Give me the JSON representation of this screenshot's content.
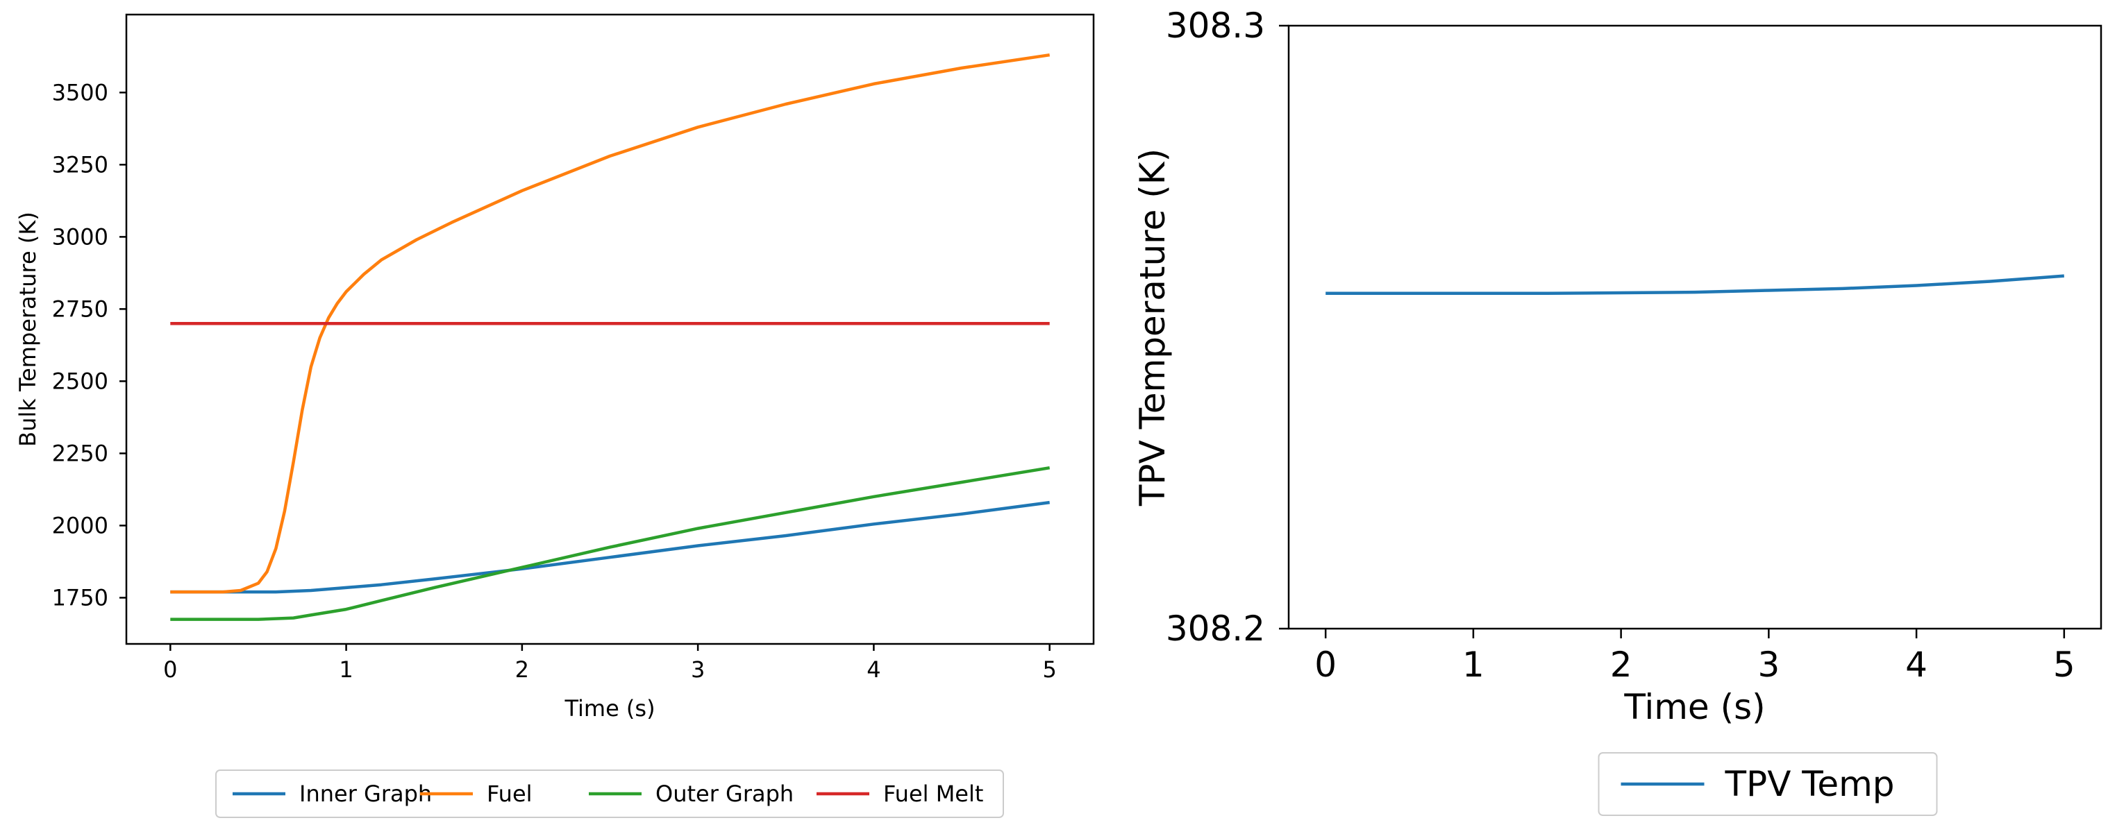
{
  "chart_data": [
    {
      "type": "line",
      "title": "",
      "xlabel": "Time (s)",
      "ylabel": "Bulk Temperature (K)",
      "xlim": [
        -0.25,
        5.25
      ],
      "ylim": [
        1590,
        3770
      ],
      "xticks": [
        0,
        1,
        2,
        3,
        4,
        5
      ],
      "xtick_labels": [
        "0",
        "1",
        "2",
        "3",
        "4",
        "5"
      ],
      "yticks": [
        1750,
        2000,
        2250,
        2500,
        2750,
        3000,
        3250,
        3500
      ],
      "ytick_labels": [
        "1750",
        "2000",
        "2250",
        "2500",
        "2750",
        "3000",
        "3250",
        "3500"
      ],
      "grid": false,
      "legend_position": "bottom-center",
      "series": [
        {
          "name": "Inner Graph",
          "color": "#1f77b4",
          "x": [
            0,
            0.3,
            0.6,
            0.8,
            1.0,
            1.2,
            1.5,
            2.0,
            2.5,
            3.0,
            3.5,
            4.0,
            4.5,
            5.0
          ],
          "y": [
            1770,
            1770,
            1770,
            1775,
            1785,
            1795,
            1815,
            1850,
            1890,
            1930,
            1965,
            2005,
            2040,
            2080
          ]
        },
        {
          "name": "Fuel",
          "color": "#ff7f0e",
          "x": [
            0,
            0.3,
            0.4,
            0.5,
            0.55,
            0.6,
            0.65,
            0.7,
            0.75,
            0.8,
            0.85,
            0.9,
            0.95,
            1.0,
            1.1,
            1.2,
            1.4,
            1.6,
            2.0,
            2.5,
            3.0,
            3.5,
            4.0,
            4.5,
            5.0
          ],
          "y": [
            1770,
            1770,
            1775,
            1800,
            1840,
            1920,
            2050,
            2220,
            2400,
            2550,
            2650,
            2720,
            2770,
            2810,
            2870,
            2920,
            2990,
            3050,
            3160,
            3280,
            3380,
            3460,
            3530,
            3585,
            3630
          ]
        },
        {
          "name": "Outer Graph",
          "color": "#2ca02c",
          "x": [
            0,
            0.5,
            0.7,
            0.8,
            1.0,
            1.2,
            1.5,
            2.0,
            2.5,
            3.0,
            3.5,
            4.0,
            4.5,
            5.0
          ],
          "y": [
            1675,
            1675,
            1680,
            1690,
            1710,
            1740,
            1785,
            1855,
            1925,
            1990,
            2045,
            2100,
            2150,
            2200
          ]
        },
        {
          "name": "Fuel Melt",
          "color": "#d62728",
          "x": [
            0,
            5
          ],
          "y": [
            2700,
            2700
          ]
        }
      ]
    },
    {
      "type": "line",
      "title": "",
      "xlabel": "Time (s)",
      "ylabel": "TPV Temperature (K)",
      "xlim": [
        -0.25,
        5.25
      ],
      "ylim": [
        308.2,
        308.3
      ],
      "xticks": [
        0,
        1,
        2,
        3,
        4,
        5
      ],
      "xtick_labels": [
        "0",
        "1",
        "2",
        "3",
        "4",
        "5"
      ],
      "yticks": [
        308.2,
        308.3
      ],
      "ytick_labels": [
        "308.2",
        "308.3"
      ],
      "grid": false,
      "legend_position": "bottom-center",
      "series": [
        {
          "name": "TPV Temp",
          "color": "#1f77b4",
          "x": [
            0,
            1,
            1.5,
            2,
            2.5,
            3,
            3.5,
            4,
            4.5,
            5
          ],
          "y": [
            308.2556,
            308.2556,
            308.2556,
            308.2557,
            308.2558,
            308.2561,
            308.2564,
            308.2569,
            308.2576,
            308.2585
          ]
        }
      ]
    }
  ]
}
